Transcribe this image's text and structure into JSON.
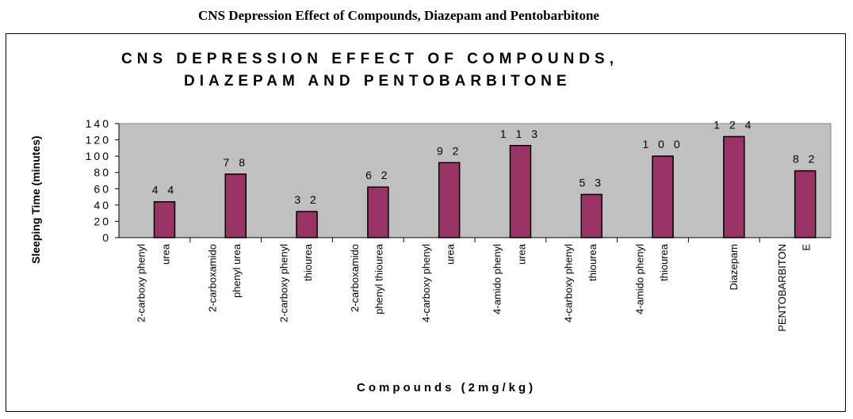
{
  "document": {
    "heading": "CNS Depression Effect of Compounds, Diazepam and Pentobarbitone"
  },
  "chart_data": {
    "type": "bar",
    "title_lines": [
      "CNS DEPRESSION EFFECT OF COMPOUNDS,",
      "DIAZEPAM AND PENTOBARBITONE"
    ],
    "xlabel": "Compounds (2mg/kg)",
    "ylabel": "Sleeping Time (minutes)",
    "ylim": [
      0,
      140
    ],
    "yticks": [
      0,
      20,
      40,
      60,
      80,
      100,
      120,
      140
    ],
    "grid": false,
    "legend": "none",
    "categories": [
      [
        "2-carboxy phenyl",
        "urea"
      ],
      [
        "2-carboxamido",
        "phenyl urea"
      ],
      [
        "2-carboxy phenyl",
        "thiourea"
      ],
      [
        "2-carboxamido",
        "phenyl thiourea"
      ],
      [
        "4-carboxy phenyl",
        "urea"
      ],
      [
        "4-amido phenyl",
        "urea"
      ],
      [
        "4-carboxy phenyl",
        "thiourea"
      ],
      [
        "4-amido phenyl",
        "thiourea"
      ],
      [
        "Diazepam"
      ],
      [
        "PENTOBARBITON",
        "E"
      ]
    ],
    "values": [
      44,
      78,
      32,
      62,
      92,
      113,
      53,
      100,
      124,
      82
    ],
    "value_labels": [
      "4 4",
      "7 8",
      "3 2",
      "6 2",
      "9 2",
      "1 1 3",
      "5 3",
      "1 0 0",
      "1 2 4",
      "8 2"
    ],
    "colors": {
      "bar": "#993366",
      "plot_background": "#c0c0c0",
      "axis": "#000000"
    }
  }
}
